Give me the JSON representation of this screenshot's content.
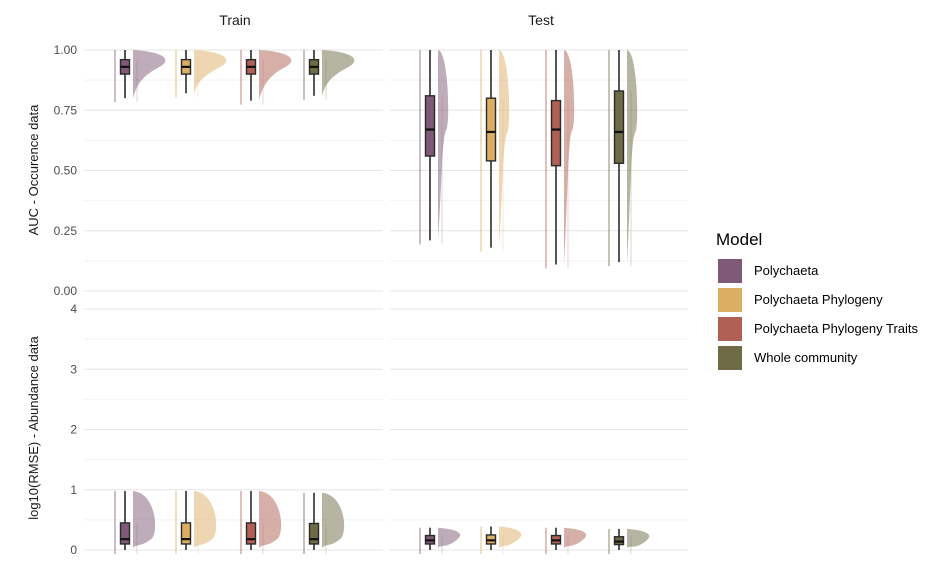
{
  "chart_data": {
    "type": "raincloud",
    "facets": {
      "columns": [
        "Train",
        "Test"
      ]
    },
    "rows": [
      {
        "ylabel": "AUC - Occurence data",
        "yticks": [
          "0.00",
          "0.25",
          "0.50",
          "0.75",
          "1.00"
        ],
        "ylim": [
          0,
          1
        ]
      },
      {
        "ylabel": "log10(RMSE) - Abundance data",
        "yticks": [
          "0",
          "1",
          "2",
          "3",
          "4"
        ],
        "ylim": [
          -0.15,
          4.1
        ]
      }
    ],
    "legend": {
      "title": "Model",
      "entries": [
        {
          "label": "Polychaeta",
          "color": "#7e5a78"
        },
        {
          "label": "Polychaeta Phylogeny",
          "color": "#dcae64"
        },
        {
          "label": "Polychaeta Phylogeny Traits",
          "color": "#b06054"
        },
        {
          "label": "Whole community",
          "color": "#6e6b45"
        }
      ]
    },
    "panels": [
      {
        "row": 0,
        "col": 0,
        "stats": [
          {
            "model": "Polychaeta",
            "min": 0.8,
            "q1": 0.9,
            "median": 0.93,
            "q3": 0.96,
            "max": 1.0
          },
          {
            "model": "Polychaeta Phylogeny",
            "min": 0.82,
            "q1": 0.9,
            "median": 0.93,
            "q3": 0.96,
            "max": 1.0
          },
          {
            "model": "Polychaeta Phylogeny Traits",
            "min": 0.79,
            "q1": 0.9,
            "median": 0.93,
            "q3": 0.96,
            "max": 1.0
          },
          {
            "model": "Whole community",
            "min": 0.81,
            "q1": 0.9,
            "median": 0.93,
            "q3": 0.96,
            "max": 1.0
          }
        ]
      },
      {
        "row": 0,
        "col": 1,
        "stats": [
          {
            "model": "Polychaeta",
            "min": 0.21,
            "q1": 0.56,
            "median": 0.67,
            "q3": 0.81,
            "max": 1.0
          },
          {
            "model": "Polychaeta Phylogeny",
            "min": 0.18,
            "q1": 0.54,
            "median": 0.66,
            "q3": 0.8,
            "max": 1.0
          },
          {
            "model": "Polychaeta Phylogeny Traits",
            "min": 0.11,
            "q1": 0.52,
            "median": 0.67,
            "q3": 0.79,
            "max": 1.0
          },
          {
            "model": "Whole community",
            "min": 0.12,
            "q1": 0.53,
            "median": 0.66,
            "q3": 0.83,
            "max": 1.0
          }
        ]
      },
      {
        "row": 1,
        "col": 0,
        "stats": [
          {
            "model": "Polychaeta",
            "min": 0.0,
            "q1": 0.1,
            "median": 0.18,
            "q3": 0.45,
            "max": 0.98
          },
          {
            "model": "Polychaeta Phylogeny",
            "min": 0.0,
            "q1": 0.1,
            "median": 0.18,
            "q3": 0.45,
            "max": 0.98
          },
          {
            "model": "Polychaeta Phylogeny Traits",
            "min": 0.0,
            "q1": 0.1,
            "median": 0.18,
            "q3": 0.45,
            "max": 0.98
          },
          {
            "model": "Whole community",
            "min": 0.0,
            "q1": 0.1,
            "median": 0.18,
            "q3": 0.44,
            "max": 0.95
          }
        ]
      },
      {
        "row": 1,
        "col": 1,
        "stats": [
          {
            "model": "Polychaeta",
            "min": 0.0,
            "q1": 0.1,
            "median": 0.16,
            "q3": 0.24,
            "max": 0.37
          },
          {
            "model": "Polychaeta Phylogeny",
            "min": 0.0,
            "q1": 0.1,
            "median": 0.16,
            "q3": 0.25,
            "max": 0.39
          },
          {
            "model": "Polychaeta Phylogeny Traits",
            "min": 0.0,
            "q1": 0.1,
            "median": 0.16,
            "q3": 0.24,
            "max": 0.37
          },
          {
            "model": "Whole community",
            "min": 0.0,
            "q1": 0.09,
            "median": 0.14,
            "q3": 0.22,
            "max": 0.35
          }
        ]
      }
    ]
  }
}
